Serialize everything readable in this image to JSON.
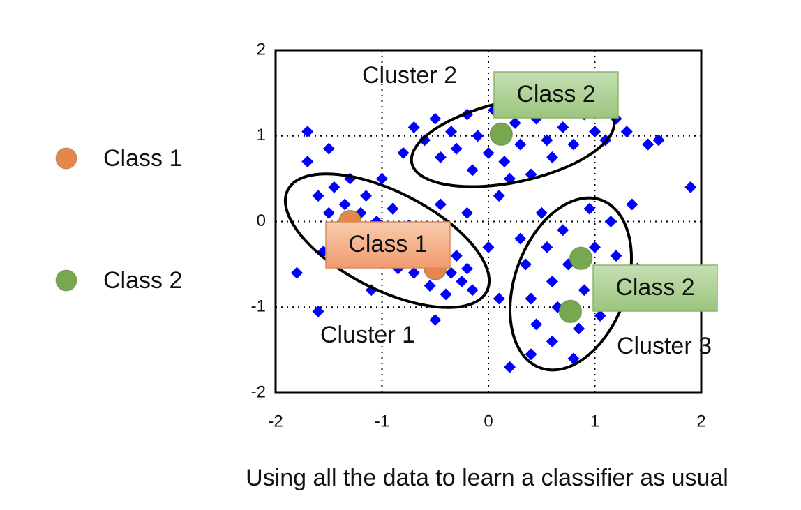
{
  "chart_data": {
    "type": "scatter",
    "caption": "Using all the data to learn a classifier as usual",
    "xlim": [
      -2,
      2
    ],
    "ylim": [
      -2,
      2
    ],
    "xticks": [
      -2,
      -1,
      0,
      1,
      2
    ],
    "yticks": [
      -2,
      -1,
      0,
      1,
      2
    ],
    "grid": true,
    "data": {
      "color": "#0000ff",
      "x": [
        -1.6,
        -1.5,
        -1.45,
        -1.4,
        -1.35,
        -1.3,
        -1.25,
        -1.2,
        -1.15,
        -1.1,
        -1.05,
        -1,
        -0.95,
        -0.9,
        -0.85,
        -0.8,
        -0.75,
        -0.7,
        -0.65,
        -0.6,
        -0.55,
        -0.5,
        -0.45,
        -0.4,
        -0.35,
        -0.3,
        -0.25,
        -0.2,
        -0.15,
        -1.7,
        -1.55,
        -1.8,
        -1.6,
        -1.1,
        -0.5,
        -0.45,
        -0.8,
        -0.7,
        -0.6,
        -0.5,
        -0.45,
        -0.35,
        -0.3,
        -0.2,
        -0.15,
        -0.1,
        0,
        0.05,
        0.15,
        0.25,
        0.3,
        0.4,
        0.45,
        0.55,
        0.6,
        0.7,
        0.8,
        0.9,
        1.0,
        1.1,
        1.2,
        1.3,
        1.5,
        1.6,
        -1.7,
        -1.5,
        -1.0,
        0.2,
        0.3,
        0.35,
        0.4,
        0.45,
        0.5,
        0.55,
        0.6,
        0.6,
        0.65,
        0.7,
        0.75,
        0.8,
        0.85,
        0.9,
        0.95,
        1.0,
        1.05,
        1.1,
        1.15,
        1.2,
        1.25,
        1.35,
        0.2,
        0.4,
        1.9,
        1.4,
        0.1,
        0.0,
        -0.2,
        0.1
      ],
      "y": [
        0.3,
        0.1,
        0.4,
        -0.1,
        0.2,
        0.5,
        -0.2,
        0.1,
        0.3,
        -0.3,
        0,
        -0.45,
        -0.15,
        0.15,
        -0.55,
        -0.3,
        -0.05,
        -0.6,
        -0.4,
        -0.2,
        -0.75,
        -0.45,
        -0.3,
        -0.85,
        -0.6,
        -0.4,
        -0.7,
        -0.55,
        -0.8,
        0.7,
        -0.35,
        -0.6,
        -1.05,
        -0.8,
        -1.15,
        0.2,
        0.8,
        1.1,
        0.95,
        1.2,
        0.75,
        1.05,
        0.85,
        1.25,
        0.6,
        1.0,
        0.8,
        1.3,
        0.7,
        1.15,
        0.9,
        0.55,
        1.2,
        0.95,
        0.75,
        1.1,
        0.9,
        1.25,
        1.05,
        0.95,
        1.2,
        1.05,
        0.9,
        0.95,
        1.05,
        0.85,
        0.5,
        0.5,
        -0.2,
        -0.5,
        -0.9,
        -1.2,
        0.1,
        -0.3,
        -0.7,
        -1.4,
        -1.0,
        -0.1,
        -0.5,
        -1.6,
        -1.25,
        -0.8,
        0.15,
        -0.3,
        -1.1,
        -0.6,
        0.0,
        -0.4,
        -0.9,
        0.2,
        -1.7,
        -1.55,
        0.4,
        -0.55,
        -0.9,
        -0.3,
        0.1,
        0.3
      ]
    },
    "series": [
      {
        "name": "Class 1",
        "color": "#e8854a",
        "x": [
          -1.3,
          -0.5
        ],
        "y": [
          0,
          -0.55
        ]
      },
      {
        "name": "Class 2",
        "color": "#77a84f",
        "x": [
          0.12,
          0.87,
          0.77
        ],
        "y": [
          1.02,
          -0.43,
          -1.05
        ]
      }
    ],
    "annotations": [
      "Cluster 2",
      "Class 2",
      "Class 1",
      "Cluster 1",
      "Class 2",
      "Cluster 3"
    ]
  }
}
